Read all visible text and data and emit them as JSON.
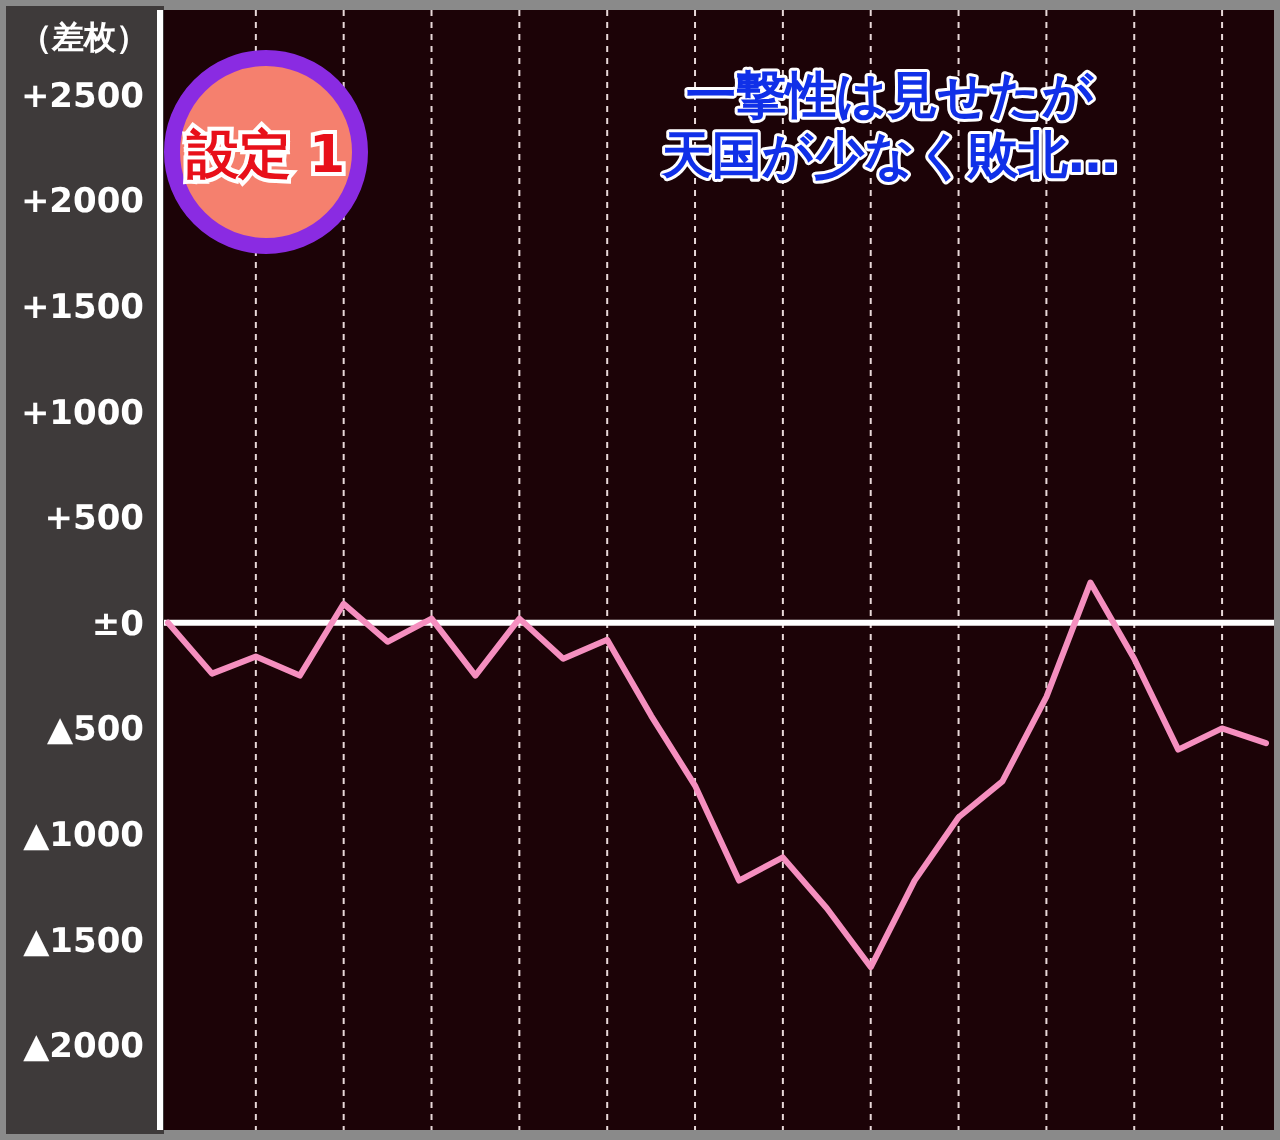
{
  "chart_data": {
    "type": "line",
    "title": "一撃性は見せたが",
    "subtitle": "天国が少なく敗北…",
    "ylabel": "（差枚）",
    "annotations": [
      "設定 1"
    ],
    "categories": [
      null,
      null,
      null,
      null,
      null,
      null,
      null,
      null,
      null,
      null,
      null,
      null,
      null,
      null,
      null,
      null,
      null,
      null,
      null,
      null,
      null,
      null,
      null,
      null,
      null,
      null
    ],
    "ylim": [
      -2400,
      2900
    ],
    "yticks": [
      {
        "value": 2500,
        "label": "+2500"
      },
      {
        "value": 2000,
        "label": "+2000"
      },
      {
        "value": 1500,
        "label": "+1500"
      },
      {
        "value": 1000,
        "label": "+1000"
      },
      {
        "value": 500,
        "label": "+500"
      },
      {
        "value": 0,
        "label": "±0"
      },
      {
        "value": -500,
        "label": "▲500"
      },
      {
        "value": -1000,
        "label": "▲1000"
      },
      {
        "value": -1500,
        "label": "▲1500"
      },
      {
        "value": -2000,
        "label": "▲2000"
      }
    ],
    "tick_labels": "y",
    "grid": "x",
    "ref_lines": [
      {
        "axis": "y",
        "value": 0,
        "label": null,
        "color": "#ffffff"
      }
    ],
    "series": [
      {
        "color": "#f58fbf",
        "values": [
          0,
          -240,
          -160,
          -250,
          90,
          -90,
          20,
          -250,
          20,
          -170,
          -80,
          -440,
          -770,
          -1220,
          -1110,
          -1350,
          -1630,
          -1220,
          -920,
          -750,
          -350,
          190,
          -170,
          -600,
          -500,
          -570
        ]
      }
    ]
  }
}
